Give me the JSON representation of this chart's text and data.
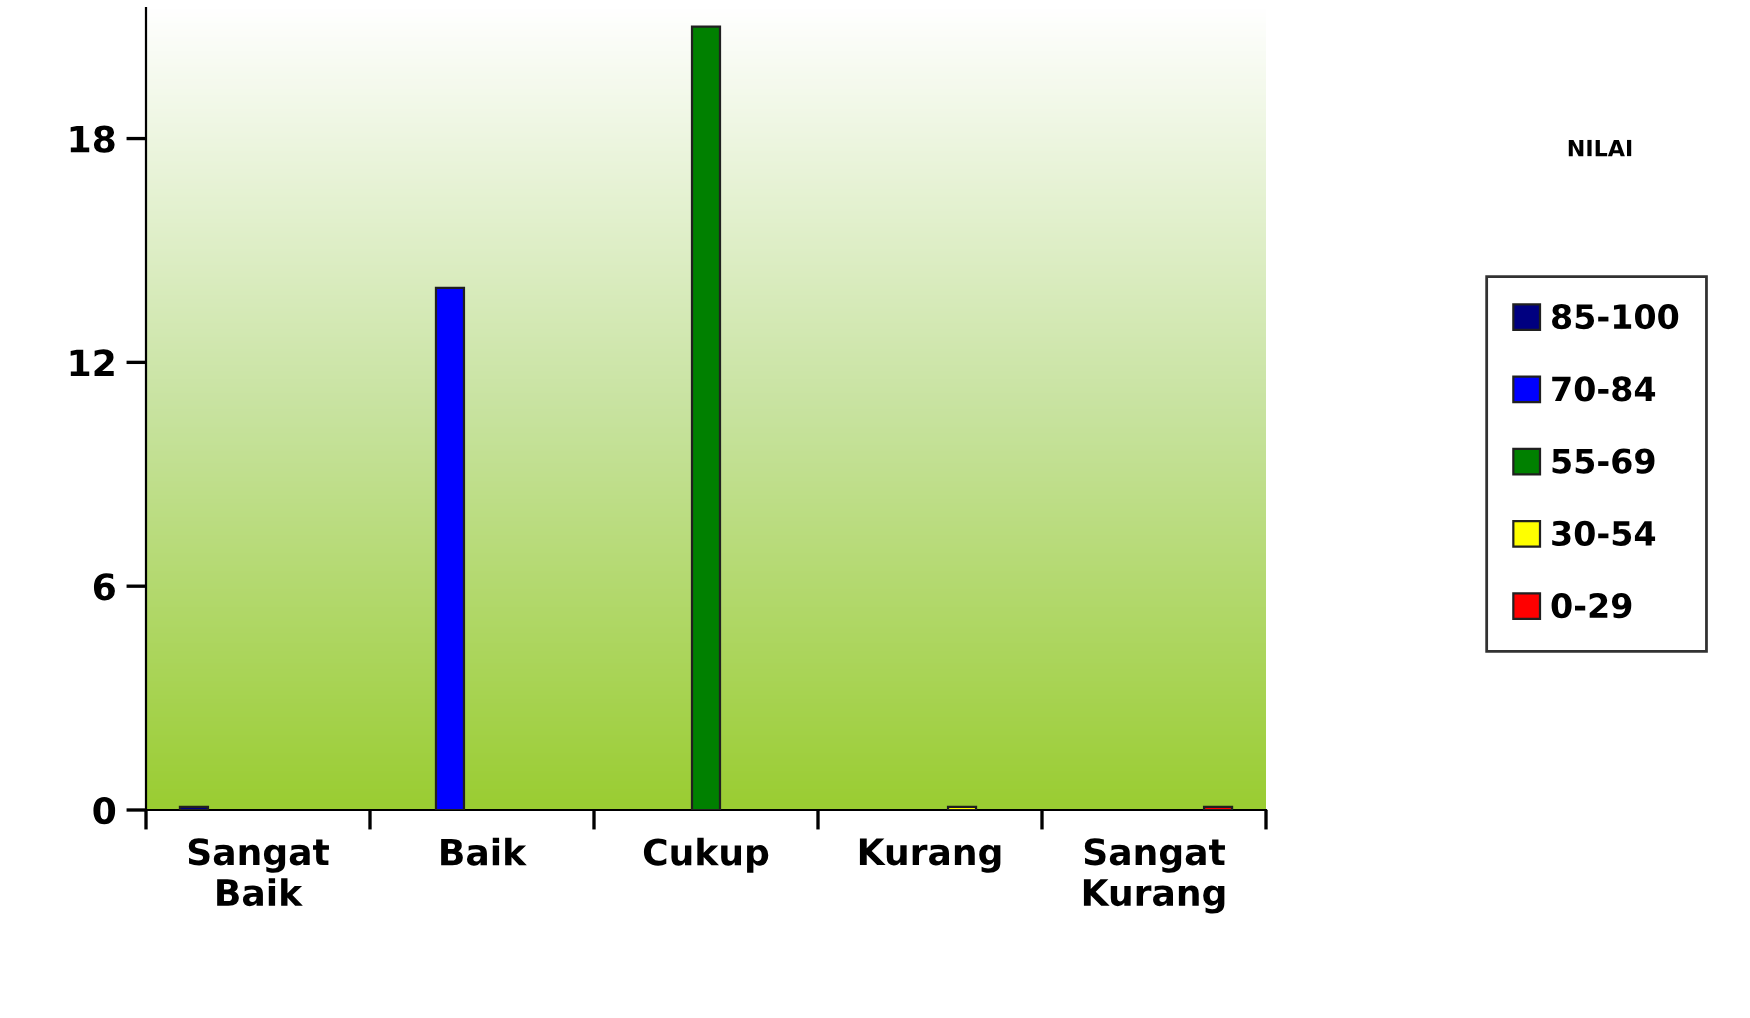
{
  "chart_data": {
    "type": "bar",
    "categories": [
      "Sangat Baik",
      "Baik",
      "Cukup",
      "Kurang",
      "Sangat Kurang"
    ],
    "series": [
      {
        "name": "85-100",
        "color": "#000080",
        "values": [
          0,
          null,
          null,
          null,
          null
        ]
      },
      {
        "name": "70-84",
        "color": "#0000ff",
        "values": [
          null,
          14,
          null,
          null,
          null
        ]
      },
      {
        "name": "55-69",
        "color": "#008000",
        "values": [
          null,
          null,
          21,
          null,
          null
        ]
      },
      {
        "name": "30-54",
        "color": "#ffff00",
        "values": [
          null,
          null,
          null,
          0,
          null
        ]
      },
      {
        "name": "0-29",
        "color": "#ff0000",
        "values": [
          null,
          null,
          null,
          null,
          0
        ]
      }
    ],
    "ylim": [
      0,
      21.5
    ],
    "yticks": [
      0,
      6,
      12,
      18
    ],
    "grid": false,
    "legend": "right",
    "legend_title": "NILAI"
  }
}
